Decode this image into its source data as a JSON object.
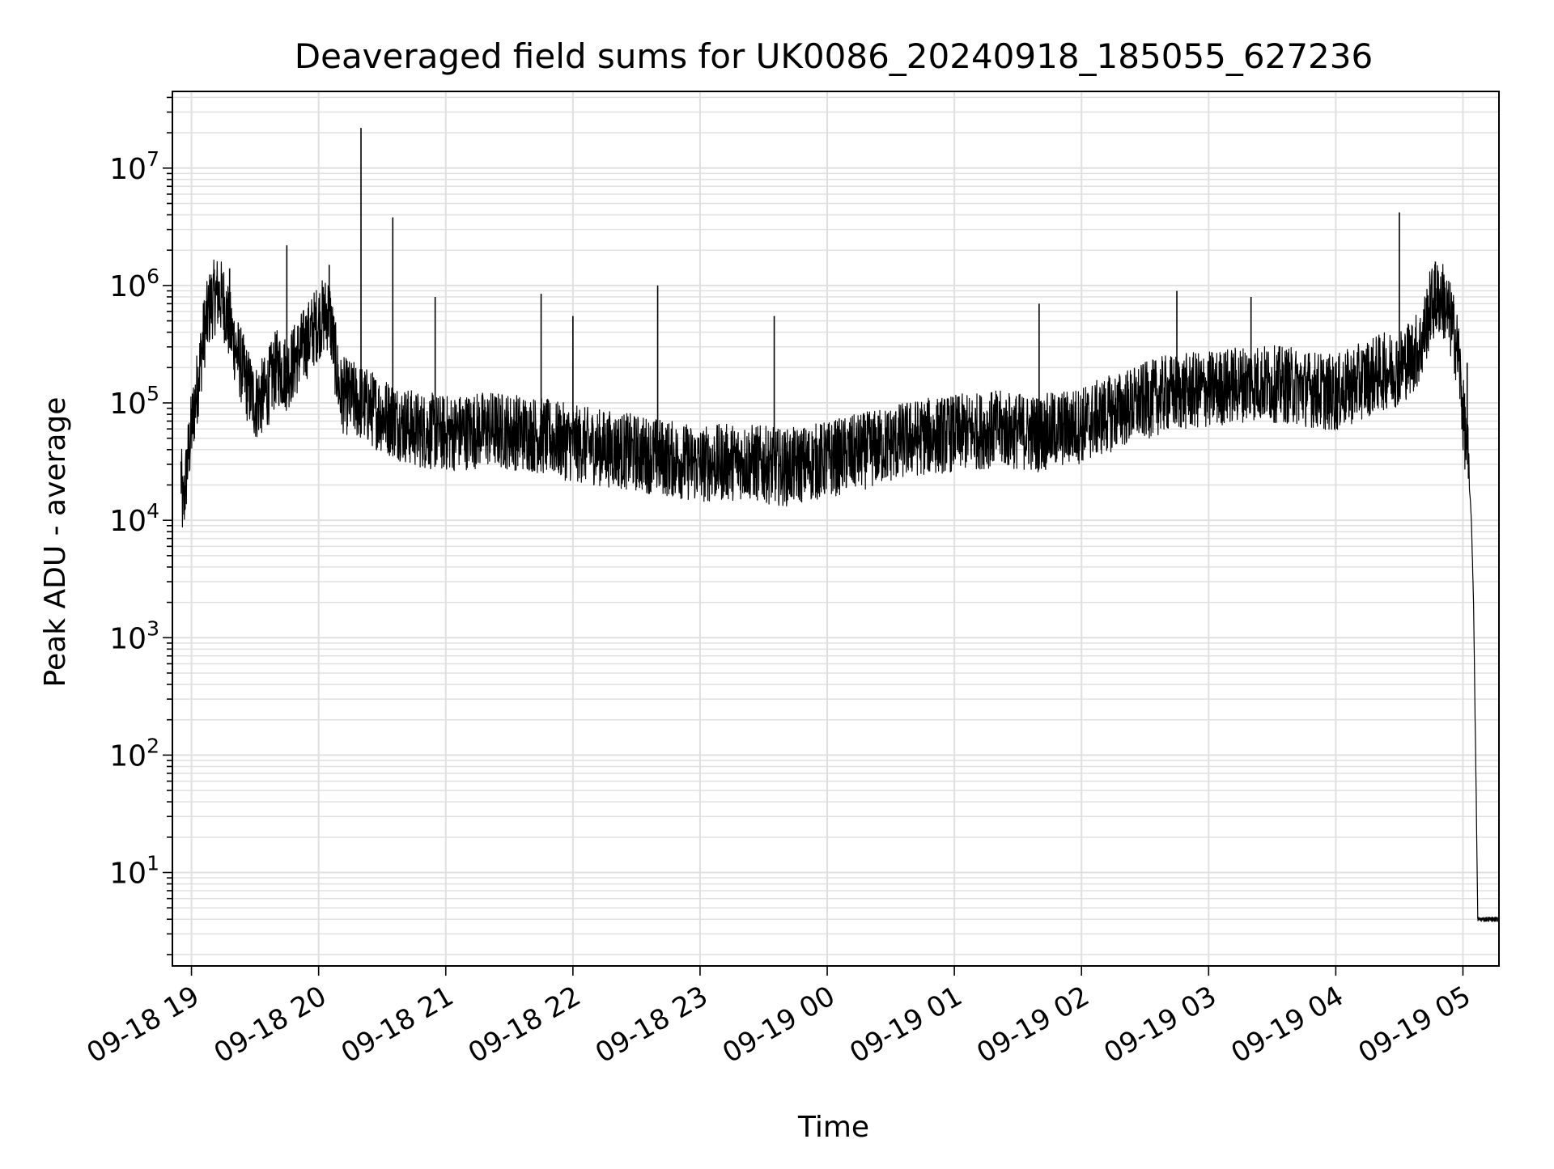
{
  "chart_data": {
    "type": "line",
    "title": "Deaveraged field sums for UK0086_20240918_185055_627236",
    "xlabel": "Time",
    "ylabel": "Peak ADU - average",
    "yscale": "log",
    "ylim": [
      1.6,
      45000000
    ],
    "xlim": [
      "2024-09-18 18:51",
      "2024-09-19 05:17"
    ],
    "grid": true,
    "line_color": "#000000",
    "grid_color": "#e0e0e0",
    "x_ticks": [
      "09-18 19",
      "09-18 20",
      "09-18 21",
      "09-18 22",
      "09-18 23",
      "09-19 00",
      "09-19 01",
      "09-19 02",
      "09-19 03",
      "09-19 04",
      "09-19 05"
    ],
    "y_ticks": [
      {
        "base": "10",
        "exp": "1"
      },
      {
        "base": "10",
        "exp": "2"
      },
      {
        "base": "10",
        "exp": "3"
      },
      {
        "base": "10",
        "exp": "4"
      },
      {
        "base": "10",
        "exp": "5"
      },
      {
        "base": "10",
        "exp": "6"
      },
      {
        "base": "10",
        "exp": "7"
      }
    ],
    "series": [
      {
        "x": [
          "2024-09-18 18:55",
          "2024-09-18 18:56",
          "2024-09-18 18:58",
          "2024-09-18 19:00",
          "2024-09-18 19:03",
          "2024-09-18 19:06",
          "2024-09-18 19:09",
          "2024-09-18 19:12",
          "2024-09-18 19:15",
          "2024-09-18 19:18",
          "2024-09-18 19:22",
          "2024-09-18 19:26",
          "2024-09-18 19:30",
          "2024-09-18 19:35",
          "2024-09-18 19:40",
          "2024-09-18 19:45",
          "2024-09-18 19:50",
          "2024-09-18 19:55",
          "2024-09-18 20:00",
          "2024-09-18 20:05",
          "2024-09-18 20:10",
          "2024-09-18 20:20",
          "2024-09-18 20:30",
          "2024-09-18 20:45",
          "2024-09-18 21:00",
          "2024-09-18 21:20",
          "2024-09-18 21:40",
          "2024-09-18 22:00",
          "2024-09-18 22:20",
          "2024-09-18 22:40",
          "2024-09-18 23:00",
          "2024-09-18 23:20",
          "2024-09-18 23:40",
          "2024-09-19 00:00",
          "2024-09-19 00:20",
          "2024-09-19 00:40",
          "2024-09-19 01:00",
          "2024-09-19 01:20",
          "2024-09-19 01:40",
          "2024-09-19 02:00",
          "2024-09-19 02:20",
          "2024-09-19 02:40",
          "2024-09-19 03:00",
          "2024-09-19 03:20",
          "2024-09-19 03:40",
          "2024-09-19 04:00",
          "2024-09-19 04:20",
          "2024-09-19 04:30",
          "2024-09-19 04:40",
          "2024-09-19 04:45",
          "2024-09-19 04:50",
          "2024-09-19 04:55",
          "2024-09-19 04:58",
          "2024-09-19 05:00",
          "2024-09-19 05:02",
          "2024-09-19 05:04",
          "2024-09-19 05:05",
          "2024-09-19 05:06",
          "2024-09-19 05:07",
          "2024-09-19 05:08",
          "2024-09-19 05:17"
        ],
        "y": [
          25000,
          12000,
          30000,
          60000,
          150000,
          400000,
          700000,
          850000,
          750000,
          450000,
          250000,
          150000,
          100000,
          120000,
          200000,
          180000,
          250000,
          350000,
          500000,
          600000,
          120000,
          100000,
          80000,
          60000,
          55000,
          60000,
          55000,
          45000,
          40000,
          35000,
          30000,
          32000,
          28000,
          33000,
          40000,
          50000,
          55000,
          60000,
          55000,
          65000,
          90000,
          120000,
          130000,
          150000,
          140000,
          120000,
          180000,
          200000,
          300000,
          700000,
          800000,
          450000,
          250000,
          80000,
          40000,
          10000,
          2000,
          100,
          4,
          4,
          4
        ]
      }
    ],
    "spikes": [
      {
        "x": "2024-09-18 19:06",
        "y": 420000
      },
      {
        "x": "2024-09-18 19:12",
        "y": 1200000
      },
      {
        "x": "2024-09-18 19:18",
        "y": 1400000
      },
      {
        "x": "2024-09-18 19:45",
        "y": 2200000
      },
      {
        "x": "2024-09-18 20:05",
        "y": 1500000
      },
      {
        "x": "2024-09-18 20:20",
        "y": 22000000
      },
      {
        "x": "2024-09-18 20:35",
        "y": 3800000
      },
      {
        "x": "2024-09-18 20:55",
        "y": 800000
      },
      {
        "x": "2024-09-18 21:45",
        "y": 850000
      },
      {
        "x": "2024-09-18 22:00",
        "y": 550000
      },
      {
        "x": "2024-09-18 22:40",
        "y": 1000000
      },
      {
        "x": "2024-09-18 23:35",
        "y": 550000
      },
      {
        "x": "2024-09-19 01:40",
        "y": 700000
      },
      {
        "x": "2024-09-19 02:45",
        "y": 900000
      },
      {
        "x": "2024-09-19 03:20",
        "y": 800000
      },
      {
        "x": "2024-09-19 04:30",
        "y": 4200000
      },
      {
        "x": "2024-09-19 04:47",
        "y": 1600000
      },
      {
        "x": "2024-09-19 05:02",
        "y": 220000
      }
    ]
  }
}
